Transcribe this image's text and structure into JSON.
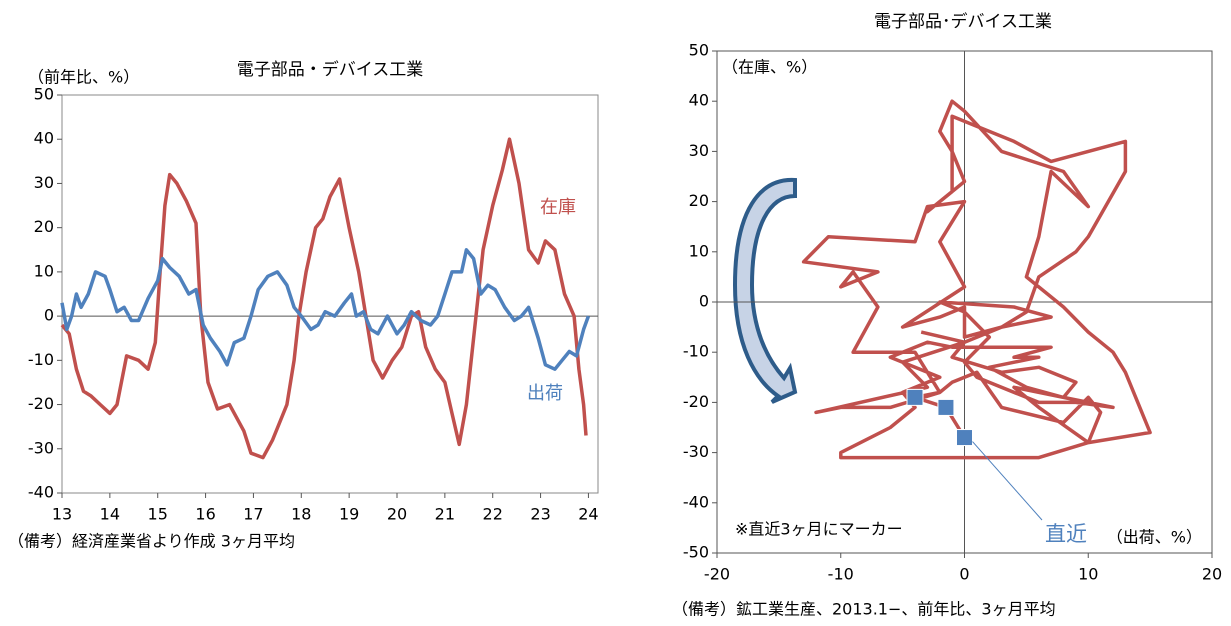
{
  "chart_data": [
    {
      "type": "line",
      "title": "電子部品・デバイス工業",
      "y_label": "（前年比、%）",
      "note": "（備考）経済産業省より作成 3ヶ月平均",
      "xlim": [
        13,
        24.2
      ],
      "xticks": [
        13,
        14,
        15,
        16,
        17,
        18,
        19,
        20,
        21,
        22,
        23,
        24
      ],
      "ylim": [
        -40,
        50
      ],
      "yticks": [
        -40,
        -30,
        -20,
        -10,
        0,
        10,
        20,
        30,
        40,
        50
      ],
      "zero_line": true,
      "series": [
        {
          "name": "在庫",
          "color": "#c0504d",
          "x": [
            13.0,
            13.15,
            13.3,
            13.45,
            13.6,
            13.8,
            14.0,
            14.15,
            14.35,
            14.6,
            14.8,
            14.95,
            15.05,
            15.15,
            15.25,
            15.4,
            15.6,
            15.8,
            15.9,
            16.05,
            16.25,
            16.5,
            16.8,
            16.95,
            17.2,
            17.4,
            17.7,
            17.85,
            17.95,
            18.1,
            18.3,
            18.45,
            18.6,
            18.8,
            19.0,
            19.2,
            19.35,
            19.5,
            19.7,
            19.9,
            20.1,
            20.3,
            20.45,
            20.6,
            20.8,
            21.0,
            21.15,
            21.3,
            21.45,
            21.65,
            21.8,
            22.0,
            22.2,
            22.35,
            22.55,
            22.75,
            22.95,
            23.1,
            23.3,
            23.5,
            23.7,
            23.8,
            23.9,
            23.95
          ],
          "values": [
            -2,
            -4,
            -12,
            -17,
            -18,
            -20,
            -22,
            -20,
            -9,
            -10,
            -12,
            -6,
            10,
            25,
            32,
            30,
            26,
            21,
            0,
            -15,
            -21,
            -20,
            -26,
            -31,
            -32,
            -28,
            -20,
            -10,
            0,
            10,
            20,
            22,
            27,
            31,
            20,
            10,
            0,
            -10,
            -14,
            -10,
            -7,
            0,
            1,
            -7,
            -12,
            -15,
            -22,
            -29,
            -20,
            0,
            15,
            25,
            33,
            40,
            30,
            15,
            12,
            17,
            15,
            5,
            0,
            -12,
            -20,
            -27
          ]
        },
        {
          "name": "出荷",
          "color": "#4f81bd",
          "x": [
            13.0,
            13.1,
            13.2,
            13.3,
            13.4,
            13.55,
            13.7,
            13.9,
            14.0,
            14.15,
            14.3,
            14.45,
            14.6,
            14.8,
            15.0,
            15.1,
            15.25,
            15.45,
            15.65,
            15.8,
            15.95,
            16.1,
            16.3,
            16.45,
            16.6,
            16.8,
            16.95,
            17.1,
            17.3,
            17.5,
            17.7,
            17.85,
            18.0,
            18.2,
            18.35,
            18.5,
            18.7,
            18.9,
            19.05,
            19.15,
            19.3,
            19.45,
            19.6,
            19.8,
            20.0,
            20.15,
            20.3,
            20.5,
            20.7,
            20.85,
            21.0,
            21.15,
            21.35,
            21.45,
            21.6,
            21.75,
            21.9,
            22.05,
            22.25,
            22.45,
            22.6,
            22.75,
            22.95,
            23.1,
            23.3,
            23.45,
            23.6,
            23.75,
            23.9,
            24.0
          ],
          "values": [
            3,
            -3,
            0,
            5,
            2,
            5,
            10,
            9,
            6,
            1,
            2,
            -1,
            -1,
            4,
            8,
            13,
            11,
            9,
            5,
            6,
            -2,
            -5,
            -8,
            -11,
            -6,
            -5,
            0,
            6,
            9,
            10,
            7,
            2,
            0,
            -3,
            -2,
            1,
            0,
            3,
            5,
            0,
            1,
            -3,
            -4,
            0,
            -4,
            -2,
            1,
            -1,
            -2,
            0,
            5,
            10,
            10,
            15,
            13,
            5,
            7,
            6,
            2,
            -1,
            0,
            2,
            -5,
            -11,
            -12,
            -10,
            -8,
            -9,
            -3,
            0
          ]
        }
      ]
    },
    {
      "type": "line",
      "title": "電子部品･デバイス工業",
      "y_label": "（在庫、%）",
      "x_label": "（出荷、%）",
      "annotation": "直近",
      "marker_note": "※直近3ヶ月にマーカー",
      "note": "（備考）鉱工業生産、2013.1−、前年比、3ヶ月平均",
      "xlim": [
        -20,
        20
      ],
      "xticks": [
        -20,
        -10,
        0,
        10,
        20
      ],
      "ylim": [
        -50,
        50
      ],
      "yticks": [
        -50,
        -40,
        -30,
        -20,
        -10,
        0,
        10,
        20,
        30,
        40,
        50
      ],
      "zero_line": true,
      "marker_count": 3,
      "marker_color": "#4f81bd",
      "series": [
        {
          "color": "#c0504d",
          "x": [
            -3.5,
            0,
            -5,
            -3,
            -12,
            -10,
            -6,
            -2,
            -4,
            -9,
            -7,
            -9,
            -10,
            -7,
            -13,
            -11,
            -4,
            -3,
            0,
            -2,
            0,
            -5,
            -2,
            0,
            0,
            3,
            5,
            6,
            9,
            10,
            13,
            13,
            10,
            7,
            4,
            -1,
            -1,
            -3,
            0,
            -1,
            -2,
            -1,
            0,
            3,
            8,
            10,
            7,
            6,
            5,
            8,
            10,
            12,
            13,
            15,
            10,
            6,
            4,
            8,
            12,
            9,
            6,
            1,
            0,
            2,
            0,
            -2,
            4,
            7,
            3,
            0,
            -1,
            3,
            6,
            9,
            8,
            5,
            2,
            6,
            4,
            7,
            2,
            -1,
            -3,
            -6,
            -2,
            -5,
            -4,
            -6,
            -10,
            -10,
            -2,
            6,
            10,
            11,
            10,
            8,
            3,
            1,
            -1,
            -2,
            -4,
            -1.5,
            0
          ],
          "values": [
            -6,
            -8,
            -12,
            -17,
            -22,
            -21,
            -21,
            -18,
            -10,
            -10,
            -1,
            6,
            3,
            6,
            8,
            13,
            12,
            19,
            20,
            12,
            3,
            -5,
            -3,
            -1,
            -7,
            -5,
            -2,
            5,
            10,
            13,
            26,
            32,
            30,
            28,
            32,
            37,
            22,
            18,
            24,
            30,
            34,
            40,
            38,
            30,
            26,
            19,
            26,
            13,
            5,
            -1,
            -6,
            -10,
            -14,
            -26,
            -28,
            -21,
            -17,
            -19,
            -21,
            -20,
            -20,
            -15,
            -12,
            -7,
            -2,
            0,
            -1,
            -3,
            -5,
            -8,
            -11,
            -14,
            -13,
            -16,
            -19,
            -17,
            -13,
            -11,
            -11,
            -9,
            -9,
            -9,
            -8,
            -11,
            -15,
            -18,
            -21,
            -25,
            -30,
            -31,
            -31,
            -31,
            -28,
            -22,
            -19,
            -24,
            -21,
            -14,
            -16,
            -18,
            -19,
            -21,
            -27
          ]
        }
      ]
    }
  ]
}
